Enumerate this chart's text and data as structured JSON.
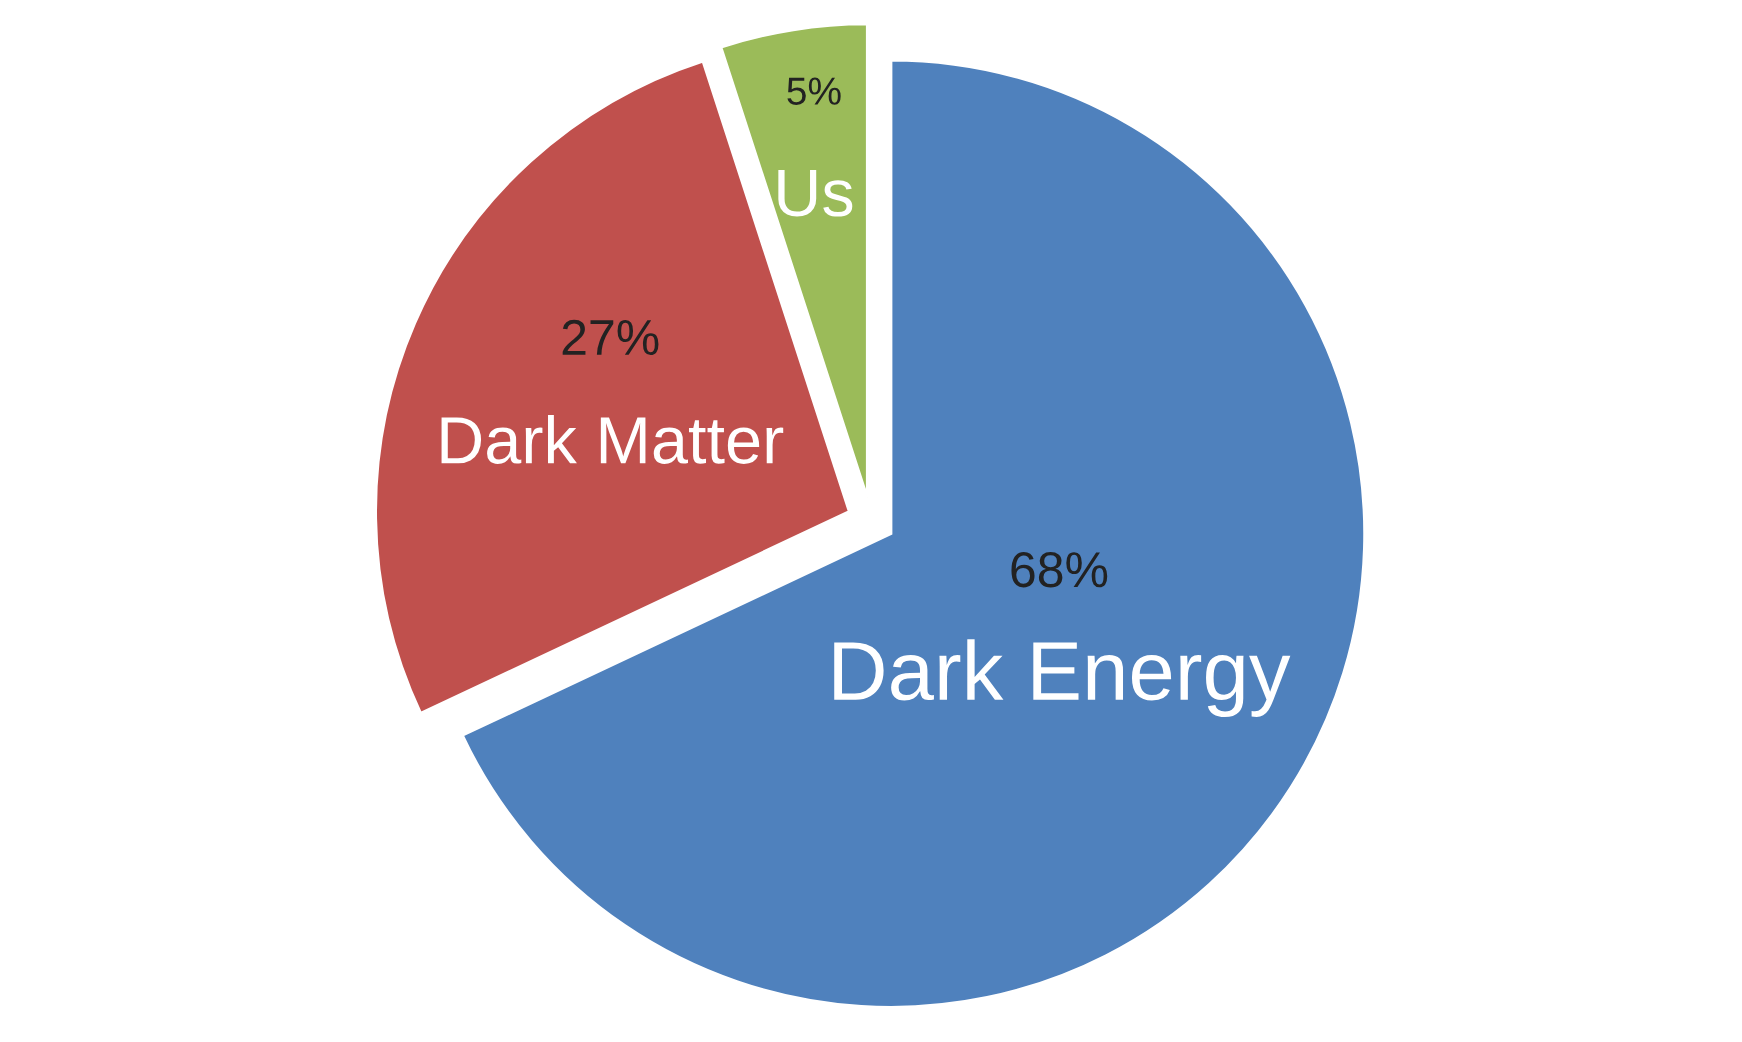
{
  "chart_data": {
    "type": "pie",
    "categories": [
      "Dark Energy",
      "Dark Matter",
      "Us"
    ],
    "values": [
      68,
      27,
      5
    ],
    "colors": [
      "#4f81bd",
      "#c0504d",
      "#9bbb59"
    ],
    "value_labels": [
      "68%",
      "27%",
      "5%"
    ],
    "legend": false
  }
}
